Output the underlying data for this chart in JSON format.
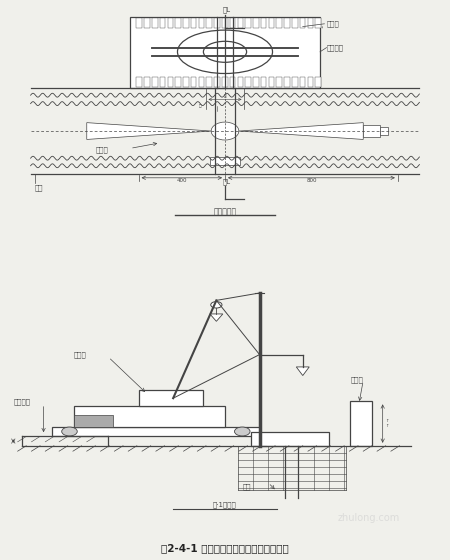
{
  "bg_color": "#f0f0eb",
  "line_color": "#444444",
  "title": "图2-4-1 抓斗与套管钻机相对位置示意图",
  "sub_label_top": "平面示意图",
  "sub_label_bottom": "立·1位置图",
  "label_kongzhi1": "控控站",
  "label_zuoyeping1": "作业平台",
  "label_taoguan1": "套管机",
  "label_yuandi1": "元地",
  "label_kongzhi2": "控控站",
  "label_zuoyeping2": "作业平台",
  "label_taoguan2": "套管机",
  "label_yuandi2": "元地",
  "dim_400": "400",
  "dim_800": "800",
  "watermark": "zhulong.com"
}
